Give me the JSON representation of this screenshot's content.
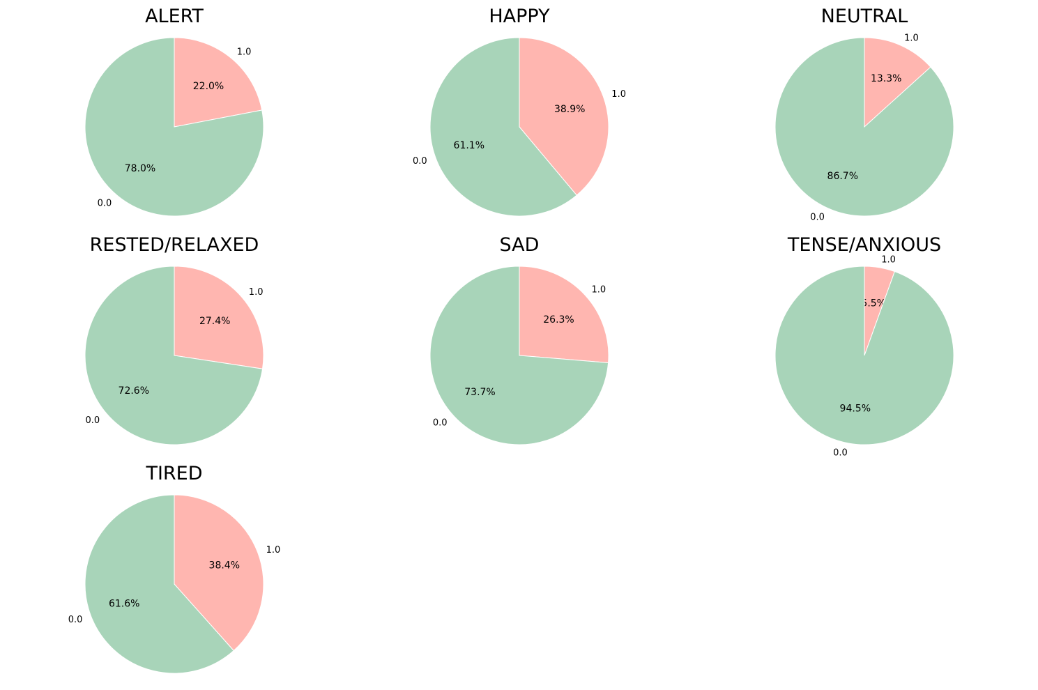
{
  "chart_data": [
    {
      "type": "pie",
      "title": "ALERT",
      "labels": [
        "1.0",
        "0.0"
      ],
      "values": [
        22.0,
        78.0
      ],
      "value_labels": [
        "22.0%",
        "78.0%"
      ],
      "colors": [
        "#ffb6b0",
        "#a8d4b9"
      ]
    },
    {
      "type": "pie",
      "title": "HAPPY",
      "labels": [
        "1.0",
        "0.0"
      ],
      "values": [
        38.9,
        61.1
      ],
      "value_labels": [
        "38.9%",
        "61.1%"
      ],
      "colors": [
        "#ffb6b0",
        "#a8d4b9"
      ]
    },
    {
      "type": "pie",
      "title": "NEUTRAL",
      "labels": [
        "1.0",
        "0.0"
      ],
      "values": [
        13.3,
        86.7
      ],
      "value_labels": [
        "13.3%",
        "86.7%"
      ],
      "colors": [
        "#ffb6b0",
        "#a8d4b9"
      ]
    },
    {
      "type": "pie",
      "title": "RESTED/RELAXED",
      "labels": [
        "1.0",
        "0.0"
      ],
      "values": [
        27.4,
        72.6
      ],
      "value_labels": [
        "27.4%",
        "72.6%"
      ],
      "colors": [
        "#ffb6b0",
        "#a8d4b9"
      ]
    },
    {
      "type": "pie",
      "title": "SAD",
      "labels": [
        "1.0",
        "0.0"
      ],
      "values": [
        26.3,
        73.7
      ],
      "value_labels": [
        "26.3%",
        "73.7%"
      ],
      "colors": [
        "#ffb6b0",
        "#a8d4b9"
      ]
    },
    {
      "type": "pie",
      "title": "TENSE/ANXIOUS",
      "labels": [
        "1.0",
        "0.0"
      ],
      "values": [
        5.5,
        94.5
      ],
      "value_labels": [
        "5.5%",
        "94.5%"
      ],
      "colors": [
        "#ffb6b0",
        "#a8d4b9"
      ]
    },
    {
      "type": "pie",
      "title": "TIRED",
      "labels": [
        "1.0",
        "0.0"
      ],
      "values": [
        38.4,
        61.6
      ],
      "value_labels": [
        "38.4%",
        "61.6%"
      ],
      "colors": [
        "#ffb6b0",
        "#a8d4b9"
      ]
    }
  ]
}
